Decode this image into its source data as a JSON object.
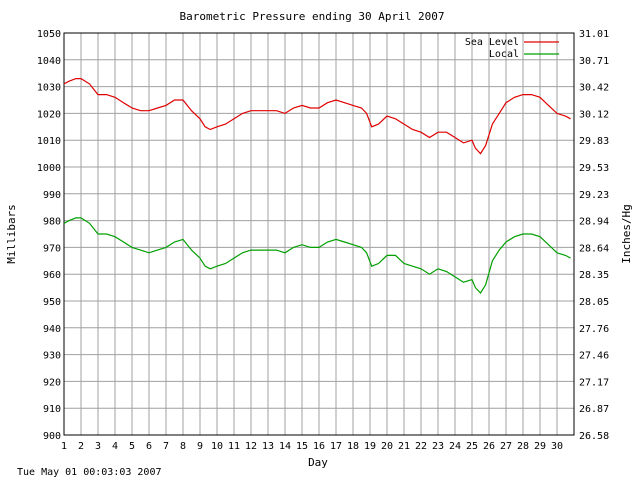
{
  "chart_data": {
    "type": "line",
    "title": "Barometric Pressure ending 30 April 2007",
    "xlabel": "Day",
    "ylabel": "Millibars",
    "ylabel_right": "Inches/Hg",
    "footer_timestamp": "Tue May 01 00:03:03 2007",
    "xlim": [
      1,
      31
    ],
    "ylim": [
      900,
      1050
    ],
    "x_ticks": [
      "1",
      "2",
      "3",
      "4",
      "5",
      "6",
      "7",
      "8",
      "9",
      "10",
      "11",
      "12",
      "13",
      "14",
      "15",
      "16",
      "17",
      "18",
      "19",
      "20",
      "21",
      "22",
      "23",
      "24",
      "25",
      "26",
      "27",
      "28",
      "29",
      "30"
    ],
    "y_ticks": [
      900,
      910,
      920,
      930,
      940,
      950,
      960,
      970,
      980,
      990,
      1000,
      1010,
      1020,
      1030,
      1040,
      1050
    ],
    "y_right_ticks": [
      "26.58",
      "26.87",
      "27.17",
      "27.46",
      "27.76",
      "28.05",
      "28.35",
      "28.64",
      "28.94",
      "29.23",
      "29.53",
      "29.83",
      "30.12",
      "30.42",
      "30.71",
      "31.01"
    ],
    "grid": true,
    "legend_position": "top-right",
    "series": [
      {
        "name": "Sea Level",
        "color": "#e00000",
        "x": [
          1.0,
          1.3,
          1.7,
          2.0,
          2.5,
          3.0,
          3.5,
          4.0,
          4.5,
          5.0,
          5.5,
          6.0,
          6.5,
          7.0,
          7.5,
          8.0,
          8.5,
          9.0,
          9.3,
          9.6,
          10.0,
          10.5,
          11.0,
          11.5,
          12.0,
          12.5,
          13.0,
          13.5,
          14.0,
          14.5,
          15.0,
          15.5,
          16.0,
          16.5,
          17.0,
          17.5,
          18.0,
          18.5,
          18.8,
          19.1,
          19.5,
          20.0,
          20.5,
          21.0,
          21.5,
          22.0,
          22.5,
          23.0,
          23.5,
          24.0,
          24.5,
          25.0,
          25.2,
          25.5,
          25.8,
          26.2,
          26.6,
          27.0,
          27.5,
          28.0,
          28.5,
          29.0,
          29.5,
          30.0,
          30.5,
          30.8
        ],
        "values": [
          1031,
          1032,
          1033,
          1033,
          1031,
          1027,
          1027,
          1026,
          1024,
          1022,
          1021,
          1021,
          1022,
          1023,
          1025,
          1025,
          1021,
          1018,
          1015,
          1014,
          1015,
          1016,
          1018,
          1020,
          1021,
          1021,
          1021,
          1021,
          1020,
          1022,
          1023,
          1022,
          1022,
          1024,
          1025,
          1024,
          1023,
          1022,
          1020,
          1015,
          1016,
          1019,
          1018,
          1016,
          1014,
          1013,
          1011,
          1013,
          1013,
          1011,
          1009,
          1010,
          1007,
          1005,
          1008,
          1016,
          1020,
          1024,
          1026,
          1027,
          1027,
          1026,
          1023,
          1020,
          1019,
          1018
        ]
      },
      {
        "name": "Local",
        "color": "#00a000",
        "x": [
          1.0,
          1.3,
          1.7,
          2.0,
          2.5,
          3.0,
          3.5,
          4.0,
          4.5,
          5.0,
          5.5,
          6.0,
          6.5,
          7.0,
          7.5,
          8.0,
          8.5,
          9.0,
          9.3,
          9.6,
          10.0,
          10.5,
          11.0,
          11.5,
          12.0,
          12.5,
          13.0,
          13.5,
          14.0,
          14.5,
          15.0,
          15.5,
          16.0,
          16.5,
          17.0,
          17.5,
          18.0,
          18.5,
          18.8,
          19.1,
          19.5,
          20.0,
          20.5,
          21.0,
          21.5,
          22.0,
          22.5,
          23.0,
          23.5,
          24.0,
          24.5,
          25.0,
          25.2,
          25.5,
          25.8,
          26.2,
          26.6,
          27.0,
          27.5,
          28.0,
          28.5,
          29.0,
          29.5,
          30.0,
          30.5,
          30.8
        ],
        "values": [
          979,
          980,
          981,
          981,
          979,
          975,
          975,
          974,
          972,
          970,
          969,
          968,
          969,
          970,
          972,
          973,
          969,
          966,
          963,
          962,
          963,
          964,
          966,
          968,
          969,
          969,
          969,
          969,
          968,
          970,
          971,
          970,
          970,
          972,
          973,
          972,
          971,
          970,
          968,
          963,
          964,
          967,
          967,
          964,
          963,
          962,
          960,
          962,
          961,
          959,
          957,
          958,
          955,
          953,
          956,
          965,
          969,
          972,
          974,
          975,
          975,
          974,
          971,
          968,
          967,
          966
        ]
      }
    ]
  }
}
